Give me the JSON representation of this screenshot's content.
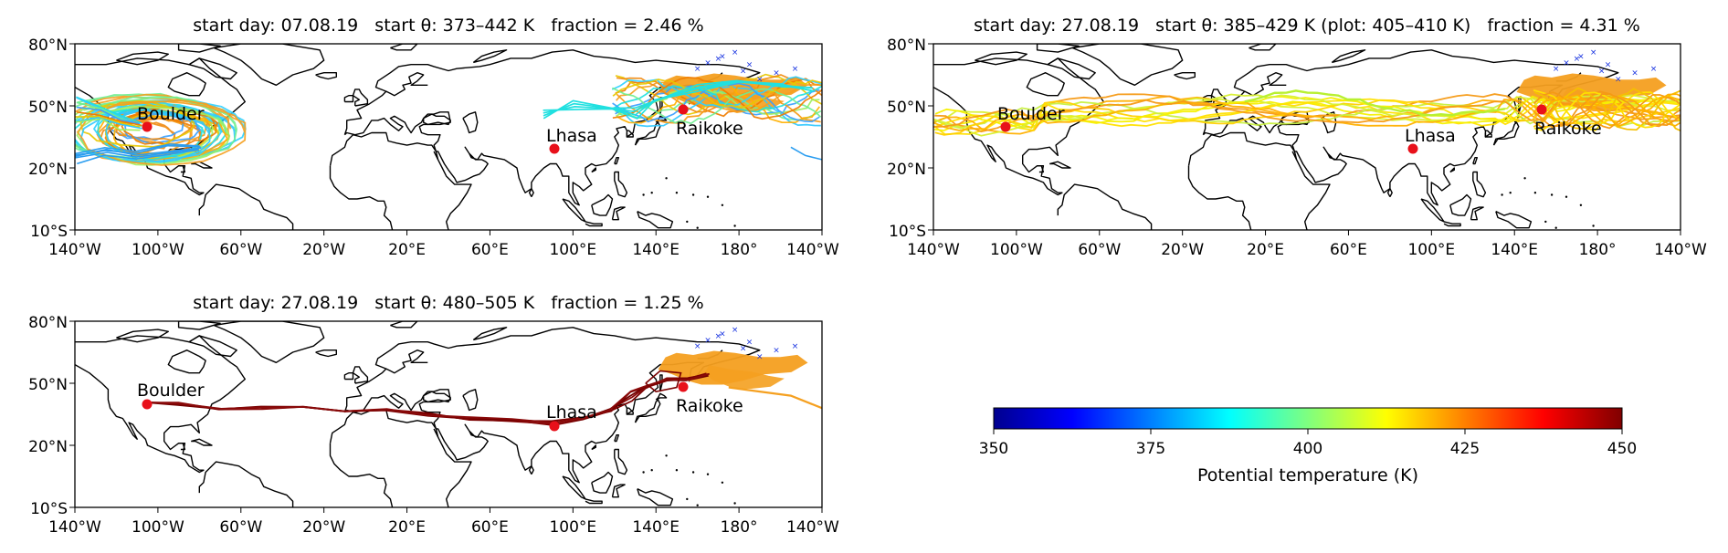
{
  "panels": [
    {
      "title": "start day: 07.08.19   start θ: 373–442 K   fraction = 2.46 %",
      "y_ticks": [
        "80°N",
        "50°N",
        "20°N",
        "10°S"
      ],
      "x_ticks": [
        "140°W",
        "100°W",
        "60°W",
        "20°W",
        "20°E",
        "60°E",
        "100°E",
        "140°E",
        "180°",
        "140°W"
      ],
      "sites": [
        {
          "name": "Boulder",
          "lon": -105.3,
          "lat": 40.0
        },
        {
          "name": "Lhasa",
          "lon": 91.1,
          "lat": 29.7
        },
        {
          "name": "Raikoke",
          "lon": 153.2,
          "lat": 48.3
        }
      ],
      "trajectory_theta_range_K": [
        373,
        442
      ]
    },
    {
      "title": "start day: 27.08.19   start θ: 385–429 K (plot: 405–410 K)   fraction = 4.31 %",
      "y_ticks": [
        "80°N",
        "50°N",
        "20°N",
        "10°S"
      ],
      "x_ticks": [
        "140°W",
        "100°W",
        "60°W",
        "20°W",
        "20°E",
        "60°E",
        "100°E",
        "140°E",
        "180°",
        "140°W"
      ],
      "sites": [
        {
          "name": "Boulder",
          "lon": -105.3,
          "lat": 40.0
        },
        {
          "name": "Lhasa",
          "lon": 91.1,
          "lat": 29.7
        },
        {
          "name": "Raikoke",
          "lon": 153.2,
          "lat": 48.3
        }
      ],
      "trajectory_theta_range_K": [
        405,
        410
      ]
    },
    {
      "title": "start day: 27.08.19   start θ: 480–505 K   fraction = 1.25 %",
      "y_ticks": [
        "80°N",
        "50°N",
        "20°N",
        "10°S"
      ],
      "x_ticks": [
        "140°W",
        "100°W",
        "60°W",
        "20°W",
        "20°E",
        "60°E",
        "100°E",
        "140°E",
        "180°",
        "140°W"
      ],
      "sites": [
        {
          "name": "Boulder",
          "lon": -105.3,
          "lat": 40.0
        },
        {
          "name": "Lhasa",
          "lon": 91.1,
          "lat": 29.7
        },
        {
          "name": "Raikoke",
          "lon": 153.2,
          "lat": 48.3
        }
      ],
      "trajectory_theta_range_K": [
        480,
        505
      ]
    }
  ],
  "colorbar": {
    "label": "Potential temperature (K)",
    "min": 350,
    "max": 450,
    "ticks": [
      "350",
      "375",
      "400",
      "425",
      "450"
    ],
    "colormap": "jet"
  },
  "colors": {
    "site_marker": "#e8101a",
    "source_region": "#f5a020",
    "initial_point": "#1530e0",
    "coastline": "#000000"
  }
}
